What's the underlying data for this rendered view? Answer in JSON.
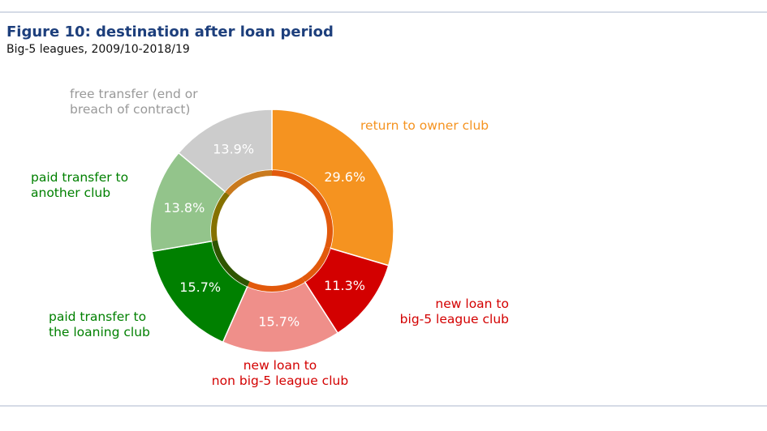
{
  "title": "Figure 10: destination after loan period",
  "subtitle": "Big-5 leagues, 2009/10-2018/19",
  "chart_data": {
    "type": "pie",
    "donut": true,
    "title": "Figure 10: destination after loan period",
    "subtitle": "Big-5 leagues, 2009/10-2018/19",
    "slices": [
      {
        "label": "return to owner club",
        "value": 29.6,
        "value_label": "29.6%",
        "color": "#f59320",
        "label_color": "#f59320",
        "ring_color": "#e2590c"
      },
      {
        "label": "new loan to big-5 league club",
        "value": 11.3,
        "value_label": "11.3%",
        "color": "#d30000",
        "label_color": "#d30000",
        "ring_color": "#e2590c"
      },
      {
        "label": "new loan to non big-5 league club",
        "value": 15.7,
        "value_label": "15.7%",
        "color": "#ef8f8a",
        "label_color": "#d30000",
        "ring_color": "#e2590c"
      },
      {
        "label": "paid transfer to the loaning club",
        "value": 15.7,
        "value_label": "15.7%",
        "color": "#008000",
        "label_color": "#008000",
        "ring_color": "#2f5500"
      },
      {
        "label": "paid transfer to another club",
        "value": 13.8,
        "value_label": "13.8%",
        "color": "#93c48b",
        "label_color": "#008000",
        "ring_color": "#857100"
      },
      {
        "label": "free transfer (end or breach of contract)",
        "value": 13.9,
        "value_label": "13.9%",
        "color": "#cccccc",
        "label_color": "#999999",
        "ring_color": "#c97a1e"
      }
    ],
    "outer_labels": [
      [
        "return to owner club"
      ],
      [
        "new loan to",
        "big-5 league club"
      ],
      [
        "new loan to",
        "non big-5 league club"
      ],
      [
        "paid transfer to",
        "the loaning club"
      ],
      [
        "paid transfer to",
        "another club"
      ],
      [
        "free transfer (end or",
        "breach of contract)"
      ]
    ]
  }
}
